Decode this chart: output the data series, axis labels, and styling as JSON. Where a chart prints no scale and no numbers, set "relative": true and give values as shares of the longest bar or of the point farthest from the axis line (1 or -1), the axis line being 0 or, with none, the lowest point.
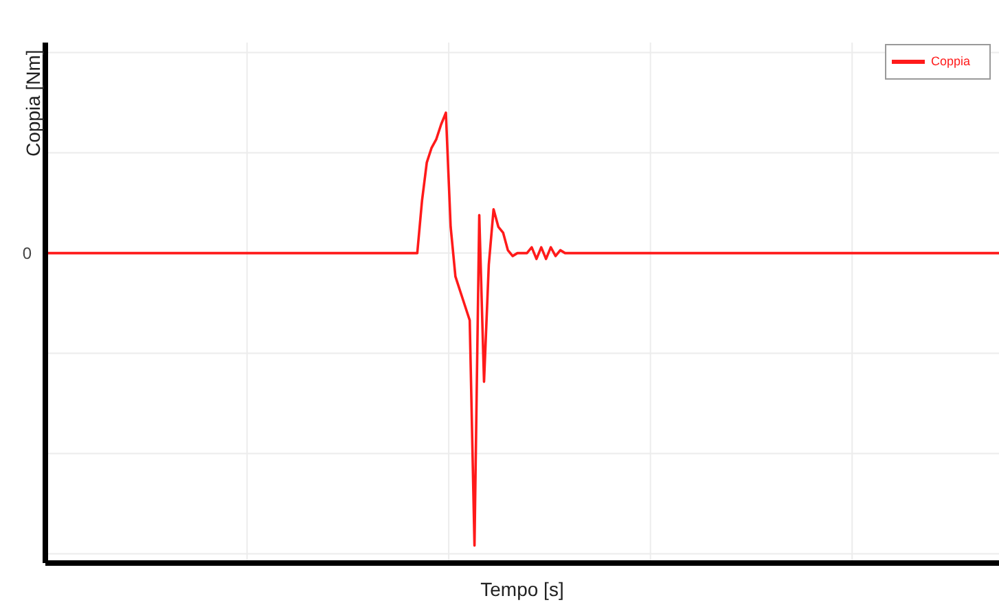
{
  "chart_data": {
    "type": "line",
    "relative": true,
    "xlabel": "Tempo [s]",
    "ylabel": "Coppia [Nm]",
    "categories": [
      null,
      null,
      null,
      null,
      null,
      null,
      null,
      null,
      null,
      null,
      null,
      null,
      null,
      null,
      null,
      null,
      null,
      null,
      null,
      null,
      null,
      null,
      null,
      null,
      null,
      null,
      null,
      null,
      null,
      null,
      null,
      null,
      null,
      null,
      null,
      null,
      null,
      null,
      null,
      null,
      null,
      null,
      null,
      null,
      null,
      null,
      null,
      null,
      null,
      null,
      null,
      null,
      null,
      null,
      null,
      null,
      null,
      null,
      null,
      null,
      null,
      null,
      null,
      null,
      null,
      null,
      null,
      null,
      null,
      null,
      null,
      null,
      null,
      null,
      null,
      null,
      null,
      null,
      null,
      null,
      null,
      null,
      null,
      null,
      null,
      null,
      null,
      null,
      null,
      null,
      null,
      null,
      null,
      null,
      null,
      null,
      null,
      null,
      null,
      null,
      null,
      null,
      null,
      null,
      null,
      null,
      null,
      null,
      null,
      null,
      null,
      null,
      null,
      null,
      null,
      null,
      null,
      null,
      null,
      null,
      null,
      null,
      null,
      null,
      null,
      null,
      null,
      null,
      null,
      null,
      null,
      null,
      null,
      null,
      null,
      null,
      null,
      null,
      null,
      null,
      null,
      null,
      null,
      null,
      null,
      null,
      null,
      null,
      null,
      null,
      null,
      null,
      null,
      null,
      null,
      null,
      null,
      null,
      null,
      null,
      null,
      null,
      null,
      null,
      null,
      null,
      null,
      null,
      null,
      null,
      null,
      null,
      null,
      null,
      null,
      null,
      null,
      null,
      null,
      null,
      null,
      null,
      null,
      null,
      null,
      null,
      null,
      null,
      null,
      null,
      null,
      null,
      null,
      null,
      null,
      null,
      null,
      null,
      null,
      null,
      null
    ],
    "series": [
      {
        "name": "Coppia",
        "color": "#ff1a1a",
        "values": [
          0,
          0,
          0,
          0,
          0,
          0,
          0,
          0,
          0,
          0,
          0,
          0,
          0,
          0,
          0,
          0,
          0,
          0,
          0,
          0,
          0,
          0,
          0,
          0,
          0,
          0,
          0,
          0,
          0,
          0,
          0,
          0,
          0,
          0,
          0,
          0,
          0,
          0,
          0,
          0,
          0,
          0,
          0,
          0,
          0,
          0,
          0,
          0,
          0,
          0,
          0,
          0,
          0,
          0,
          0,
          0,
          0,
          0,
          0,
          0,
          0,
          0,
          0,
          0,
          0,
          0,
          0,
          0,
          0,
          0,
          0,
          0,
          0,
          0,
          0,
          0,
          0,
          0,
          0,
          0.18,
          0.31,
          0.36,
          0.39,
          0.44,
          0.48,
          0.09,
          -0.08,
          -0.13,
          -0.18,
          -0.23,
          -1,
          0.13,
          -0.44,
          -0.04,
          0.15,
          0.09,
          0.07,
          0.01,
          -0.01,
          0,
          0,
          0,
          0.02,
          -0.02,
          0.02,
          -0.02,
          0.02,
          -0.01,
          0.01,
          0,
          0,
          0,
          0,
          0,
          0,
          0,
          0,
          0,
          0,
          0,
          0,
          0,
          0,
          0,
          0,
          0,
          0,
          0,
          0,
          0,
          0,
          0,
          0,
          0,
          0,
          0,
          0,
          0,
          0,
          0,
          0,
          0,
          0,
          0,
          0,
          0,
          0,
          0,
          0,
          0,
          0,
          0,
          0,
          0,
          0,
          0,
          0,
          0,
          0,
          0,
          0,
          0,
          0,
          0,
          0,
          0,
          0,
          0,
          0,
          0,
          0,
          0,
          0,
          0,
          0,
          0,
          0,
          0,
          0,
          0,
          0,
          0,
          0,
          0,
          0,
          0,
          0,
          0,
          0,
          0,
          0,
          0,
          0,
          0,
          0,
          0,
          0,
          0,
          0,
          0,
          0
        ]
      }
    ],
    "ref_lines": [
      {
        "axis": "y",
        "value": 0,
        "label": "0",
        "color": "#ececec"
      }
    ],
    "grid": true,
    "legend": "top right",
    "marker": "none",
    "line_style": "solid"
  }
}
